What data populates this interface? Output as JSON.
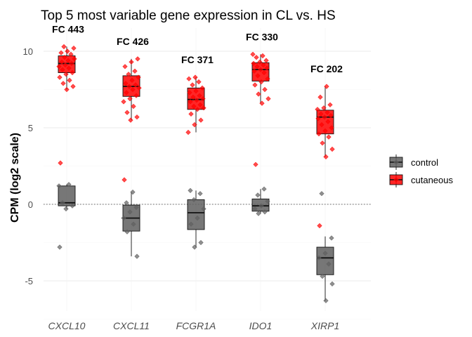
{
  "chart_data": {
    "type": "box",
    "title": "Top 5 most variable gene expression in CL vs. HS",
    "xlabel": "",
    "ylabel": "CPM (log2 scale)",
    "ylim": [
      -7.3,
      11.7
    ],
    "yticks": [
      10,
      5,
      0,
      -5
    ],
    "ytick_labels": [
      "10",
      "5",
      "0",
      "-5"
    ],
    "reference_line": 0,
    "grid": "horizontal",
    "legend_position": "right",
    "categories": [
      "CXCL10",
      "CXCL11",
      "FCGR1A",
      "IDO1",
      "XIRP1"
    ],
    "fold_change_labels": [
      "FC 443",
      "FC 426",
      "FC 371",
      "FC 330",
      "FC 202"
    ],
    "series": [
      {
        "name": "control",
        "color": "#5f5f5f",
        "boxes": [
          {
            "q1": -0.1,
            "median": 0.1,
            "q3": 1.2,
            "whisker_low": -0.3,
            "whisker_high": 1.3,
            "outliers": [
              -2.8
            ],
            "points": [
              1.2,
              1.3,
              0.1,
              -0.1,
              -0.3,
              -2.8
            ]
          },
          {
            "q1": -1.75,
            "median": -0.9,
            "q3": -0.05,
            "whisker_low": -3.4,
            "whisker_high": 0.8,
            "points": [
              0.8,
              0.1,
              -0.2,
              -0.5,
              -0.9,
              -1.3,
              -1.8,
              -3.4
            ]
          },
          {
            "q1": -1.65,
            "median": -0.55,
            "q3": 0.3,
            "whisker_low": -2.8,
            "whisker_high": 0.9,
            "points": [
              0.9,
              0.7,
              0.3,
              -0.3,
              -0.9,
              -1.3,
              -2.5,
              -2.8
            ]
          },
          {
            "q1": -0.45,
            "median": -0.1,
            "q3": 0.35,
            "whisker_low": -0.6,
            "whisker_high": 1.0,
            "points": [
              1.0,
              0.6,
              0.2,
              -0.1,
              -0.3,
              -0.5,
              -0.6
            ]
          },
          {
            "q1": -4.6,
            "median": -3.5,
            "q3": -2.8,
            "whisker_low": -6.3,
            "whisker_high": -2.1,
            "outliers": [
              0.7
            ],
            "points": [
              0.7,
              -2.2,
              -3.2,
              -3.5,
              -3.9,
              -4.7,
              -5.2,
              -6.3
            ]
          }
        ]
      },
      {
        "name": "cutaneous",
        "color": "#ff0000",
        "boxes": [
          {
            "q1": 8.6,
            "median": 9.2,
            "q3": 9.7,
            "whisker_low": 7.5,
            "whisker_high": 10.3,
            "outliers": [
              2.7
            ],
            "points": [
              10.3,
              10.2,
              10.0,
              9.9,
              9.8,
              9.6,
              9.5,
              9.4,
              9.3,
              9.2,
              9.1,
              9.0,
              8.9,
              8.8,
              8.6,
              8.5,
              8.3,
              8.1,
              7.9,
              7.7,
              7.5,
              2.7
            ]
          },
          {
            "q1": 7.05,
            "median": 7.7,
            "q3": 8.4,
            "whisker_low": 5.5,
            "whisker_high": 9.5,
            "outliers": [
              1.6
            ],
            "points": [
              9.5,
              9.3,
              9.0,
              8.7,
              8.5,
              8.3,
              8.1,
              7.9,
              7.8,
              7.7,
              7.6,
              7.5,
              7.3,
              7.1,
              6.9,
              6.7,
              6.4,
              6.0,
              5.7,
              5.5,
              1.6
            ]
          },
          {
            "q1": 6.2,
            "median": 6.85,
            "q3": 7.6,
            "whisker_low": 4.7,
            "whisker_high": 8.3,
            "points": [
              8.3,
              8.2,
              8.0,
              7.8,
              7.6,
              7.4,
              7.3,
              7.1,
              7.0,
              6.9,
              6.8,
              6.7,
              6.5,
              6.4,
              6.3,
              6.2,
              5.9,
              5.5,
              5.2,
              4.7
            ]
          },
          {
            "q1": 8.05,
            "median": 8.8,
            "q3": 9.25,
            "whisker_low": 6.6,
            "whisker_high": 9.8,
            "outliers": [
              2.6
            ],
            "points": [
              9.8,
              9.7,
              9.6,
              9.4,
              9.3,
              9.2,
              9.1,
              9.0,
              8.9,
              8.8,
              8.7,
              8.6,
              8.4,
              8.2,
              8.0,
              7.8,
              7.5,
              7.2,
              6.9,
              6.6,
              2.6
            ]
          },
          {
            "q1": 4.6,
            "median": 5.7,
            "q3": 6.15,
            "whisker_low": 3.1,
            "whisker_high": 7.7,
            "outliers": [
              -1.4
            ],
            "points": [
              7.7,
              7.0,
              6.5,
              6.3,
              6.2,
              6.0,
              5.9,
              5.8,
              5.7,
              5.6,
              5.4,
              5.2,
              5.0,
              4.8,
              4.6,
              4.4,
              4.0,
              3.6,
              3.1,
              -1.4
            ]
          }
        ]
      }
    ]
  }
}
